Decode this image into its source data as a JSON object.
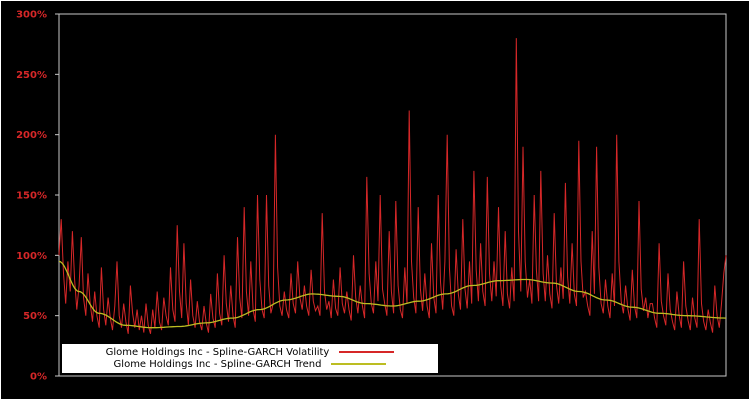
{
  "chart_data": {
    "type": "line",
    "title": "",
    "xlabel": "",
    "ylabel": "",
    "ylim": [
      0,
      300
    ],
    "y_ticks": [
      "0%",
      "50%",
      "100%",
      "150%",
      "200%",
      "250%",
      "300%"
    ],
    "y_tick_values": [
      0,
      50,
      100,
      150,
      200,
      250,
      300
    ],
    "grid": false,
    "background": "#000000",
    "axis_frame_color": "#c8c8c8",
    "tick_label_color": "#d62728",
    "legend_position": "bottom-left",
    "series": [
      {
        "name": "Glome Holdings Inc - Spline-GARCH Volatility",
        "color": "#d62728",
        "unit": "percent",
        "values": [
          100,
          130,
          85,
          60,
          95,
          70,
          120,
          80,
          55,
          75,
          115,
          65,
          50,
          85,
          60,
          45,
          70,
          50,
          40,
          90,
          55,
          42,
          65,
          48,
          38,
          58,
          95,
          50,
          40,
          60,
          45,
          35,
          75,
          52,
          40,
          55,
          38,
          50,
          36,
          60,
          42,
          35,
          55,
          40,
          70,
          45,
          38,
          65,
          50,
          42,
          90,
          55,
          45,
          125,
          70,
          48,
          110,
          60,
          42,
          80,
          50,
          40,
          62,
          45,
          38,
          58,
          44,
          36,
          68,
          48,
          40,
          85,
          52,
          42,
          100,
          60,
          45,
          75,
          50,
          40,
          115,
          65,
          48,
          140,
          70,
          50,
          95,
          55,
          45,
          150,
          80,
          55,
          48,
          150,
          75,
          52,
          60,
          200,
          90,
          58,
          50,
          70,
          55,
          48,
          85,
          60,
          52,
          95,
          65,
          55,
          75,
          58,
          50,
          88,
          62,
          54,
          58,
          50,
          135,
          70,
          55,
          62,
          48,
          80,
          56,
          50,
          90,
          60,
          52,
          70,
          55,
          46,
          100,
          65,
          52,
          75,
          58,
          48,
          165,
          85,
          60,
          52,
          95,
          62,
          150,
          72,
          60,
          50,
          120,
          70,
          52,
          145,
          75,
          55,
          48,
          90,
          60,
          220,
          95,
          65,
          52,
          140,
          72,
          54,
          85,
          58,
          48,
          110,
          65,
          52,
          150,
          78,
          55,
          95,
          200,
          90,
          58,
          50,
          105,
          68,
          55,
          130,
          72,
          56,
          95,
          60,
          170,
          88,
          62,
          110,
          70,
          58,
          165,
          85,
          62,
          95,
          66,
          140,
          75,
          58,
          120,
          68,
          56,
          90,
          62,
          280,
          120,
          70,
          190,
          95,
          65,
          80,
          60,
          150,
          88,
          62,
          170,
          85,
          62,
          100,
          68,
          56,
          135,
          75,
          60,
          90,
          64,
          160,
          82,
          60,
          110,
          68,
          58,
          195,
          95,
          65,
          70,
          58,
          50,
          120,
          68,
          190,
          90,
          60,
          52,
          80,
          58,
          48,
          85,
          58,
          200,
          95,
          62,
          52,
          75,
          56,
          46,
          88,
          58,
          48,
          145,
          72,
          54,
          65,
          48,
          60,
          60,
          48,
          40,
          110,
          62,
          50,
          42,
          85,
          55,
          45,
          38,
          70,
          50,
          40,
          95,
          58,
          46,
          38,
          65,
          48,
          40,
          130,
          60,
          45,
          38,
          55,
          44,
          36,
          75,
          50,
          40,
          60,
          85,
          100
        ]
      },
      {
        "name": "Glome Holdings Inc - Spline-GARCH Trend",
        "color": "#bcbd22",
        "unit": "percent",
        "knots_x_percent": [
          0,
          3,
          6,
          10,
          14,
          18,
          22,
          26,
          30,
          34,
          38,
          42,
          46,
          50,
          54,
          58,
          62,
          66,
          70,
          74,
          78,
          82,
          86,
          90,
          94,
          100
        ],
        "knots_y": [
          95,
          70,
          52,
          42,
          40,
          41,
          44,
          48,
          55,
          63,
          68,
          66,
          60,
          58,
          62,
          68,
          75,
          79,
          80,
          77,
          70,
          63,
          57,
          52,
          50,
          48
        ]
      }
    ]
  },
  "legend": {
    "items": [
      {
        "label": "Glome Holdings Inc - Spline-GARCH Volatility",
        "color": "#d62728"
      },
      {
        "label": "Glome Holdings Inc - Spline-GARCH Trend",
        "color": "#bcbd22"
      }
    ]
  }
}
